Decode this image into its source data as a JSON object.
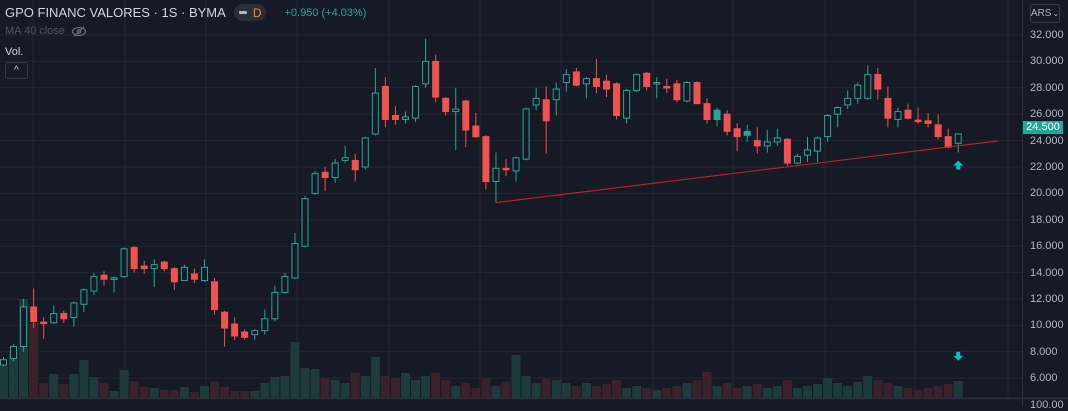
{
  "header": {
    "symbol_title": "GPO FINANC VALORES · 1S · BYMA",
    "badge_letter": "D",
    "change": "+0.950 (+4.03%)"
  },
  "indicators": {
    "ma_label": "MA 40 close",
    "volume_label": "Vol.",
    "collapse_label": "^"
  },
  "currency_selector": {
    "label": "ARS",
    "chevron": "⌄"
  },
  "price_axis": {
    "labels": [
      "32.000",
      "30.000",
      "28.000",
      "26.000",
      "24.000",
      "22.000",
      "20.000",
      "18.000",
      "16.000",
      "14.000",
      "12.000",
      "10.000",
      "8.000",
      "6.000"
    ],
    "next_pane_label": "100.00",
    "last_price": "24.500"
  },
  "colors": {
    "up": "#26a69a",
    "down": "#ef5350",
    "bg": "#161a25",
    "grid": "#232632",
    "trendline": "#b2242b",
    "arrow": "#00bcd4"
  },
  "chart_data": {
    "type": "candlestick",
    "title": "GPO FINANC VALORES · 1S · BYMA",
    "ylim": [
      6,
      32
    ],
    "fields": [
      "open",
      "high",
      "low",
      "close",
      "volume_relative"
    ],
    "candles": [
      [
        7.0,
        7.6,
        6.9,
        7.4,
        32
      ],
      [
        7.5,
        8.6,
        7.3,
        8.4,
        45
      ],
      [
        8.4,
        12.0,
        8.0,
        11.4,
        99
      ],
      [
        11.4,
        12.8,
        9.8,
        10.3,
        75
      ],
      [
        10.25,
        10.6,
        9.0,
        10.2,
        15
      ],
      [
        10.2,
        11.5,
        10.1,
        10.9,
        24
      ],
      [
        10.9,
        11.1,
        10.2,
        10.5,
        14
      ],
      [
        10.6,
        11.8,
        9.9,
        11.7,
        24
      ],
      [
        11.6,
        12.8,
        11.0,
        12.7,
        38
      ],
      [
        12.6,
        14.0,
        12.3,
        13.7,
        21
      ],
      [
        13.8,
        14.1,
        13.0,
        13.5,
        15
      ],
      [
        13.5,
        13.7,
        12.5,
        13.6,
        7
      ],
      [
        13.7,
        15.9,
        13.6,
        15.8,
        28
      ],
      [
        15.9,
        16.0,
        14.0,
        14.3,
        17
      ],
      [
        14.5,
        14.9,
        13.9,
        14.3,
        11
      ],
      [
        14.3,
        15.0,
        12.9,
        14.6,
        10
      ],
      [
        14.8,
        14.9,
        14.1,
        14.3,
        8
      ],
      [
        14.3,
        14.4,
        12.7,
        13.3,
        8
      ],
      [
        13.4,
        14.6,
        13.4,
        14.4,
        11
      ],
      [
        13.9,
        14.3,
        13.2,
        13.5,
        6
      ],
      [
        13.4,
        15.0,
        13.3,
        14.4,
        12
      ],
      [
        13.3,
        13.6,
        10.8,
        11.2,
        16
      ],
      [
        11.0,
        11.1,
        8.4,
        9.8,
        11
      ],
      [
        10.1,
        10.6,
        8.9,
        9.2,
        7
      ],
      [
        9.5,
        9.7,
        8.9,
        9.1,
        7
      ],
      [
        9.3,
        9.7,
        8.9,
        9.6,
        7
      ],
      [
        9.6,
        11.2,
        9.3,
        10.5,
        15
      ],
      [
        10.5,
        13.0,
        10.3,
        12.5,
        21
      ],
      [
        12.5,
        14.0,
        12.4,
        13.7,
        22
      ],
      [
        13.6,
        17.0,
        13.5,
        16.2,
        56
      ],
      [
        16.0,
        19.8,
        15.9,
        19.6,
        30
      ],
      [
        20.0,
        21.7,
        19.9,
        21.5,
        29
      ],
      [
        21.6,
        22.0,
        20.2,
        21.2,
        20
      ],
      [
        21.2,
        22.6,
        20.8,
        22.3,
        18
      ],
      [
        22.5,
        23.6,
        22.3,
        22.7,
        15
      ],
      [
        22.5,
        23.0,
        20.9,
        21.8,
        25
      ],
      [
        22.0,
        24.3,
        21.8,
        24.2,
        22
      ],
      [
        24.5,
        29.5,
        24.4,
        27.6,
        41
      ],
      [
        28.1,
        28.8,
        25.0,
        25.6,
        22
      ],
      [
        25.9,
        26.6,
        25.2,
        25.6,
        20
      ],
      [
        25.6,
        26.2,
        25.3,
        25.8,
        25
      ],
      [
        25.7,
        28.2,
        25.4,
        28.1,
        18
      ],
      [
        28.3,
        31.7,
        28.0,
        30.0,
        22
      ],
      [
        30.0,
        30.5,
        26.9,
        27.3,
        25
      ],
      [
        27.2,
        27.3,
        25.9,
        26.2,
        18
      ],
      [
        26.2,
        28.0,
        23.3,
        26.4,
        12
      ],
      [
        27.0,
        27.1,
        23.5,
        24.8,
        15
      ],
      [
        25.1,
        26.1,
        24.2,
        24.3,
        10
      ],
      [
        24.3,
        24.4,
        20.3,
        20.9,
        20
      ],
      [
        20.9,
        23.1,
        19.3,
        21.9,
        12
      ],
      [
        21.9,
        22.6,
        21.3,
        21.8,
        16
      ],
      [
        21.7,
        22.8,
        20.9,
        22.7,
        43
      ],
      [
        22.6,
        26.5,
        22.5,
        26.4,
        22
      ],
      [
        26.7,
        28.0,
        26.3,
        27.2,
        15
      ],
      [
        27.1,
        28.1,
        23.0,
        25.5,
        20
      ],
      [
        27.1,
        28.4,
        25.9,
        27.9,
        18
      ],
      [
        28.4,
        29.4,
        27.7,
        29.0,
        15
      ],
      [
        29.2,
        29.5,
        28.1,
        28.2,
        12
      ],
      [
        28.3,
        28.8,
        27.2,
        28.7,
        15
      ],
      [
        28.7,
        30.2,
        27.6,
        28.1,
        12
      ],
      [
        28.5,
        29.0,
        27.3,
        27.9,
        14
      ],
      [
        28.3,
        28.4,
        25.6,
        25.9,
        18
      ],
      [
        25.7,
        27.9,
        25.3,
        27.8,
        10
      ],
      [
        27.8,
        29.1,
        27.7,
        29.0,
        12
      ],
      [
        29.1,
        29.2,
        27.8,
        28.1,
        10
      ],
      [
        28.35,
        28.8,
        27.2,
        28.4,
        8
      ],
      [
        28.1,
        28.7,
        27.6,
        28.0,
        10
      ],
      [
        28.3,
        28.6,
        26.9,
        27.1,
        12
      ],
      [
        27.0,
        28.5,
        26.9,
        28.4,
        15
      ],
      [
        28.4,
        28.5,
        26.8,
        26.8,
        18
      ],
      [
        26.8,
        27.2,
        25.3,
        25.6,
        26
      ],
      [
        25.6,
        26.5,
        25.1,
        26.3,
        12
      ],
      [
        26.0,
        26.3,
        24.4,
        24.7,
        15
      ],
      [
        24.9,
        25.3,
        23.2,
        24.3,
        10
      ],
      [
        24.4,
        25.2,
        23.9,
        24.7,
        12
      ],
      [
        24.0,
        25.0,
        23.0,
        23.6,
        14
      ],
      [
        23.6,
        24.8,
        23.1,
        23.9,
        10
      ],
      [
        23.9,
        24.9,
        23.6,
        24.2,
        12
      ],
      [
        24.1,
        24.2,
        22.1,
        22.3,
        18
      ],
      [
        22.3,
        23.0,
        22.2,
        22.8,
        10
      ],
      [
        22.9,
        24.3,
        22.4,
        23.3,
        12
      ],
      [
        23.2,
        24.3,
        22.4,
        24.2,
        14
      ],
      [
        24.3,
        26.0,
        23.9,
        25.9,
        20
      ],
      [
        26.0,
        26.6,
        25.0,
        26.5,
        15
      ],
      [
        26.7,
        27.8,
        26.4,
        27.2,
        12
      ],
      [
        27.2,
        28.4,
        26.8,
        28.2,
        16
      ],
      [
        27.2,
        29.7,
        27.1,
        29.0,
        22
      ],
      [
        29.0,
        29.5,
        27.1,
        27.9,
        18
      ],
      [
        27.2,
        28.1,
        25.0,
        25.7,
        15
      ],
      [
        25.6,
        26.5,
        25.0,
        26.2,
        12
      ],
      [
        26.3,
        26.8,
        25.6,
        25.7,
        10
      ],
      [
        25.55,
        26.5,
        25.3,
        25.5,
        8
      ],
      [
        25.5,
        26.1,
        25.0,
        25.3,
        10
      ],
      [
        25.2,
        26.0,
        24.1,
        24.3,
        12
      ],
      [
        24.3,
        24.9,
        23.4,
        23.5,
        14
      ],
      [
        23.8,
        24.5,
        23.1,
        24.5,
        17
      ]
    ],
    "filled_up_candles": [
      71,
      74
    ],
    "trendline": {
      "from": {
        "index": 49,
        "price": 19.3
      },
      "to": {
        "index": 98.9,
        "price": 23.97
      }
    },
    "signals": [
      {
        "type": "up-arrow",
        "index": 95,
        "price": 22.1
      },
      {
        "type": "down-arrow",
        "index": 95,
        "price": 7.7
      }
    ]
  }
}
